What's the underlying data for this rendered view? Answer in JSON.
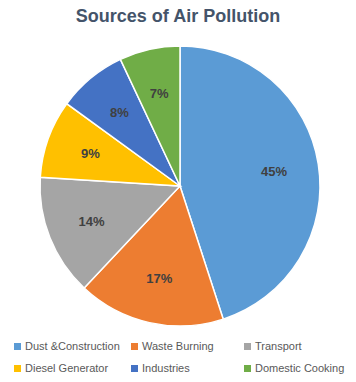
{
  "chart_data": {
    "type": "pie",
    "title": "Sources of Air Pollution",
    "categories": [
      "Dust &Construction",
      "Waste Burning",
      "Transport",
      "Diesel Generator",
      "Industries",
      "Domestic Cooking"
    ],
    "values": [
      45,
      17,
      14,
      9,
      8,
      7
    ],
    "value_labels": [
      "45%",
      "17%",
      "14%",
      "9%",
      "8%",
      "7%"
    ],
    "colors": [
      "#5b9bd5",
      "#ed7d31",
      "#a5a5a5",
      "#ffc000",
      "#4472c4",
      "#70ad47"
    ],
    "data_labels": true,
    "legend": "bottom"
  }
}
